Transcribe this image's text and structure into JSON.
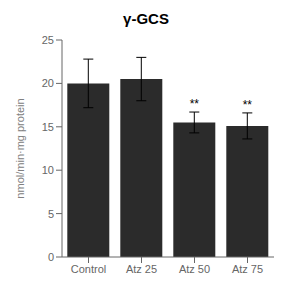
{
  "chart_data": {
    "type": "bar",
    "title": "γ-GCS",
    "categories": [
      "Control",
      "Atz 25",
      "Atz 50",
      "Atz 75"
    ],
    "values": [
      20.0,
      20.5,
      15.5,
      15.1
    ],
    "errors": [
      2.8,
      2.5,
      1.2,
      1.5
    ],
    "color": "#2b2b2b",
    "ylabel": "nmol/min·mg protein",
    "ylim": [
      0,
      25
    ],
    "yticks": [
      0,
      5,
      10,
      15,
      20,
      25
    ],
    "annotations": [
      {
        "category": "Atz 50",
        "text": "**"
      },
      {
        "category": "Atz 75",
        "text": "**"
      }
    ],
    "grid": false
  }
}
